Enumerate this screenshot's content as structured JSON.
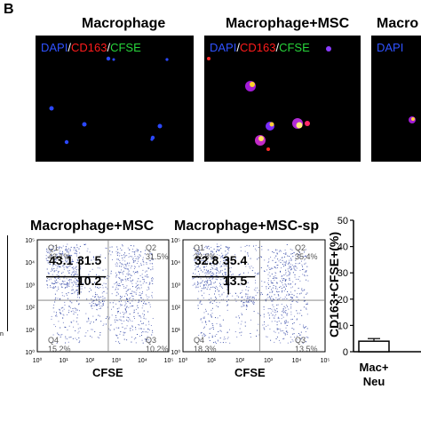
{
  "panel_label": "B",
  "micrographs": {
    "titles": [
      "Macrophage",
      "Macrophage+MSC",
      "Macro"
    ],
    "stain": {
      "dapi": "DAPI",
      "sep1": "/",
      "cd163": "CD163",
      "sep2": "/",
      "cfse": "CFSE"
    },
    "colors": {
      "dapi": "#2f52ff",
      "cd163": "#ff1b1b",
      "cfse": "#27d43a"
    }
  },
  "flow": [
    {
      "title": "Macrophage+MSC",
      "q1": "Q1",
      "q1_pct": "43.1%",
      "q2": "Q2",
      "q2_pct": "31.5%",
      "q3": "Q3",
      "q3_pct": "10.2%",
      "q4": "Q4",
      "q4_pct": "15.2%",
      "big_q1": "43.1",
      "big_q2": "31.5",
      "big_q3": "10.2",
      "xlabel": "CFSE"
    },
    {
      "title": "Macrophage+MSC-sp",
      "q1": "Q1",
      "q1_pct": "32.8%",
      "q2": "Q2",
      "q2_pct": "35.4%",
      "q3": "Q3",
      "q3_pct": "13.5%",
      "q4": "Q4",
      "q4_pct": "18.3%",
      "big_q1": "32.8",
      "big_q2": "35.4",
      "big_q3": "13.5",
      "xlabel": "CFSE"
    }
  ],
  "log_ticks": [
    "10⁰",
    "10¹",
    "10²",
    "10³",
    "10⁴",
    "10⁵"
  ],
  "left_cut_tick": "n",
  "chart_data": {
    "type": "bar",
    "ylabel": "CD163+CFSE+(%)",
    "ylim": [
      0,
      50
    ],
    "yticks": [
      "0",
      "10",
      "20",
      "30",
      "40",
      "50"
    ],
    "categories": [
      "Mac+\nNeu"
    ],
    "category_lines": [
      "Mac+",
      "Neu"
    ],
    "values": [
      4
    ],
    "errors": [
      1
    ]
  }
}
